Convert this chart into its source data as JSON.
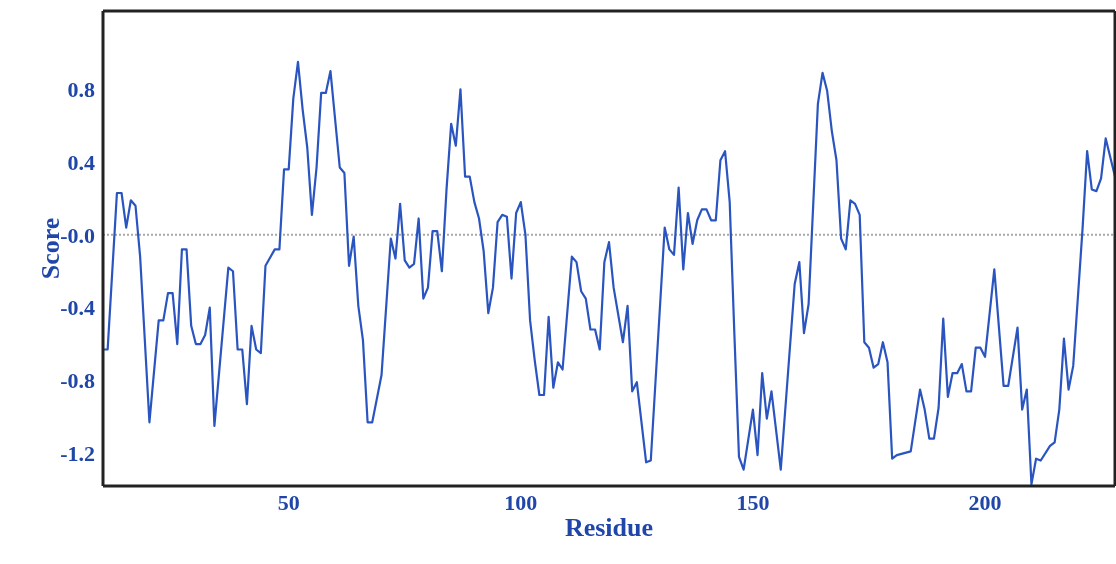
{
  "chart_data": {
    "type": "line",
    "xlabel": "Residue",
    "ylabel": "Score",
    "xlim": [
      10,
      228
    ],
    "ylim": [
      -1.38,
      1.23
    ],
    "xticks": [
      50,
      100,
      150,
      200
    ],
    "yticks": [
      0.8,
      0.4,
      {
        "value": 0,
        "label": "-0.0"
      },
      -0.4,
      -0.8,
      -1.2
    ],
    "ref_lines": [
      {
        "axis": "y",
        "value": 0,
        "color": "#a8a8a8",
        "line_style": "dotted"
      }
    ],
    "series": [
      {
        "color": "#2a55c0",
        "x": [
          10,
          11,
          13,
          14,
          15,
          16,
          17,
          18,
          20,
          22,
          23,
          24,
          25,
          26,
          27,
          28,
          29,
          30,
          31,
          32,
          33,
          34,
          37,
          38,
          39,
          40,
          41,
          42,
          43,
          44,
          45,
          47,
          48,
          49,
          50,
          51,
          52,
          53,
          54,
          55,
          56,
          57,
          58,
          59,
          60,
          61,
          62,
          63,
          64,
          65,
          66,
          67,
          68,
          70,
          72,
          73,
          74,
          75,
          76,
          77,
          78,
          79,
          80,
          81,
          82,
          83,
          84,
          85,
          86,
          87,
          88,
          89,
          90,
          91,
          92,
          93,
          94,
          95,
          96,
          97,
          98,
          99,
          100,
          101,
          102,
          103,
          104,
          105,
          106,
          107,
          108,
          109,
          111,
          112,
          113,
          114,
          115,
          116,
          117,
          118,
          119,
          120,
          122,
          123,
          124,
          125,
          127,
          128,
          131,
          132,
          133,
          134,
          135,
          136,
          137,
          138,
          139,
          140,
          141,
          142,
          143,
          144,
          145,
          146,
          147,
          148,
          150,
          151,
          152,
          153,
          154,
          156,
          159,
          160,
          161,
          162,
          164,
          165,
          166,
          167,
          168,
          169,
          170,
          171,
          172,
          173,
          174,
          175,
          176,
          177,
          178,
          179,
          180,
          181,
          183,
          184,
          186,
          187,
          188,
          189,
          190,
          191,
          192,
          193,
          194,
          195,
          196,
          197,
          198,
          199,
          200,
          202,
          204,
          205,
          207,
          208,
          209,
          210,
          211,
          212,
          213,
          214,
          215,
          216,
          217,
          218,
          219,
          221,
          222,
          223,
          224,
          225,
          226,
          228
        ],
        "values": [
          -0.63,
          -0.63,
          0.23,
          0.23,
          0.04,
          0.19,
          0.16,
          -0.12,
          -1.03,
          -0.47,
          -0.47,
          -0.32,
          -0.32,
          -0.6,
          -0.08,
          -0.08,
          -0.5,
          -0.6,
          -0.6,
          -0.55,
          -0.4,
          -1.05,
          -0.18,
          -0.2,
          -0.63,
          -0.63,
          -0.93,
          -0.5,
          -0.63,
          -0.65,
          -0.17,
          -0.08,
          -0.08,
          0.36,
          0.36,
          0.75,
          0.95,
          0.69,
          0.48,
          0.11,
          0.37,
          0.78,
          0.78,
          0.9,
          null,
          0.37,
          0.34,
          -0.17,
          -0.01,
          -0.39,
          -0.58,
          -1.03,
          -1.03,
          -0.77,
          -0.02,
          -0.13,
          0.17,
          -0.14,
          -0.18,
          -0.16,
          0.09,
          -0.35,
          -0.29,
          0.02,
          0.02,
          -0.2,
          0.25,
          0.61,
          0.49,
          0.8,
          0.32,
          0.32,
          0.18,
          0.09,
          -0.09,
          -0.43,
          -0.29,
          0.07,
          0.11,
          0.1,
          -0.24,
          0.12,
          0.18,
          0,
          -0.47,
          -0.69,
          -0.88,
          -0.88,
          -0.45,
          -0.84,
          -0.7,
          -0.74,
          -0.12,
          -0.15,
          -0.31,
          -0.35,
          -0.52,
          -0.52,
          -0.63,
          -0.15,
          -0.04,
          -0.29,
          -0.59,
          -0.39,
          -0.86,
          -0.81,
          -1.25,
          -1.24,
          0.04,
          -0.08,
          -0.11,
          0.26,
          -0.19,
          0.12,
          -0.05,
          0.08,
          0.14,
          0.14,
          0.08,
          0.08,
          0.41,
          0.46,
          0.18,
          -0.54,
          -1.22,
          -1.29,
          -0.96,
          -1.21,
          -0.76,
          -1.01,
          -0.86,
          -1.29,
          -0.27,
          -0.15,
          -0.54,
          -0.38,
          0.72,
          0.89,
          0.79,
          0.57,
          0.41,
          -0.02,
          -0.08,
          0.19,
          0.17,
          0.11,
          -0.59,
          -0.62,
          -0.73,
          -0.71,
          -0.59,
          -0.7,
          -1.23,
          -1.21,
          null,
          -1.19,
          -0.85,
          -0.96,
          -1.12,
          -1.12,
          -0.95,
          -0.46,
          -0.89,
          -0.76,
          -0.76,
          -0.71,
          -0.86,
          -0.86,
          -0.62,
          -0.62,
          -0.67,
          -0.19,
          -0.83,
          -0.83,
          -0.51,
          -0.96,
          -0.85,
          -1.37,
          -1.23,
          -1.24,
          null,
          -1.16,
          -1.14,
          -0.96,
          -0.57,
          -0.85,
          -0.72,
          0.03,
          0.46,
          0.25,
          0.24,
          0.31,
          0.53,
          0.32
        ]
      }
    ]
  }
}
